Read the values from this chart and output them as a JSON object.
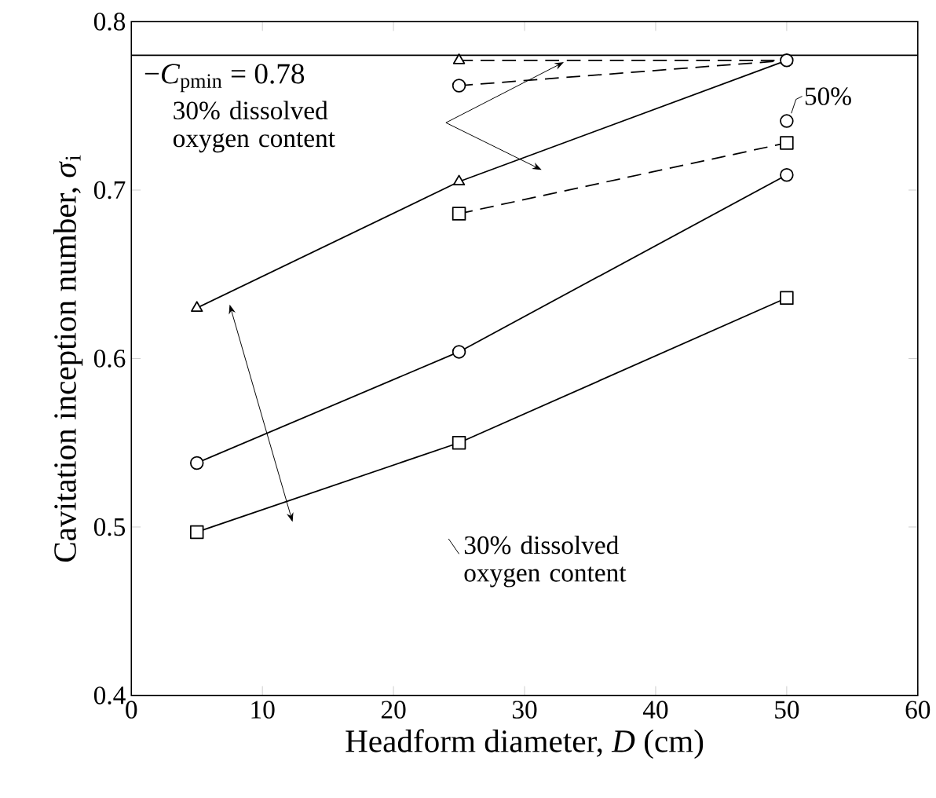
{
  "chart_data": {
    "type": "line",
    "xlabel": "Headform diameter, *D* (cm)",
    "ylabel": "Cavitation inception number, *σ*$_{i}$",
    "xlim": [
      0,
      60
    ],
    "xticks": [
      0,
      10,
      20,
      30,
      40,
      50,
      60
    ],
    "ylim": [
      0.4,
      0.8
    ],
    "yticks": [
      0.4,
      0.5,
      0.6,
      0.7,
      0.8
    ],
    "grid": false,
    "series": [
      {
        "color": "#000000",
        "marker": "triangle",
        "line_style": "solid",
        "x": [
          5,
          25,
          50
        ],
        "values": [
          0.63,
          0.705,
          0.777
        ]
      },
      {
        "color": "#000000",
        "marker": "circle",
        "line_style": "solid",
        "x": [
          5,
          25,
          50
        ],
        "values": [
          0.538,
          0.604,
          0.709
        ]
      },
      {
        "color": "#000000",
        "marker": "square",
        "line_style": "solid",
        "x": [
          5,
          25,
          50
        ],
        "values": [
          0.497,
          0.55,
          0.636
        ]
      },
      {
        "color": "#000000",
        "marker": "triangle",
        "line_style": "dashed",
        "x": [
          25,
          50
        ],
        "values": [
          0.777,
          0.777
        ]
      },
      {
        "color": "#000000",
        "marker": "circle",
        "line_style": "dashed",
        "x": [
          25,
          50
        ],
        "values": [
          0.762,
          0.777
        ]
      },
      {
        "color": "#000000",
        "marker": "square",
        "line_style": "dashed",
        "x": [
          25,
          50
        ],
        "values": [
          0.686,
          0.728
        ]
      },
      {
        "color": "#000000",
        "marker": "circle",
        "line_style": "none",
        "x": [
          50
        ],
        "values": [
          0.741
        ]
      }
    ],
    "ref_lines": [
      {
        "axis": "y",
        "value": 0.78,
        "label": "−*C*$_{pmin}$ = 0.78",
        "color": "#000000",
        "line_style": "solid"
      }
    ],
    "annotations": [
      "30% dissolved oxygen content",
      "30% dissolved oxygen content",
      {
        "text": "50%",
        "x": 50,
        "y": 0.741
      }
    ]
  }
}
